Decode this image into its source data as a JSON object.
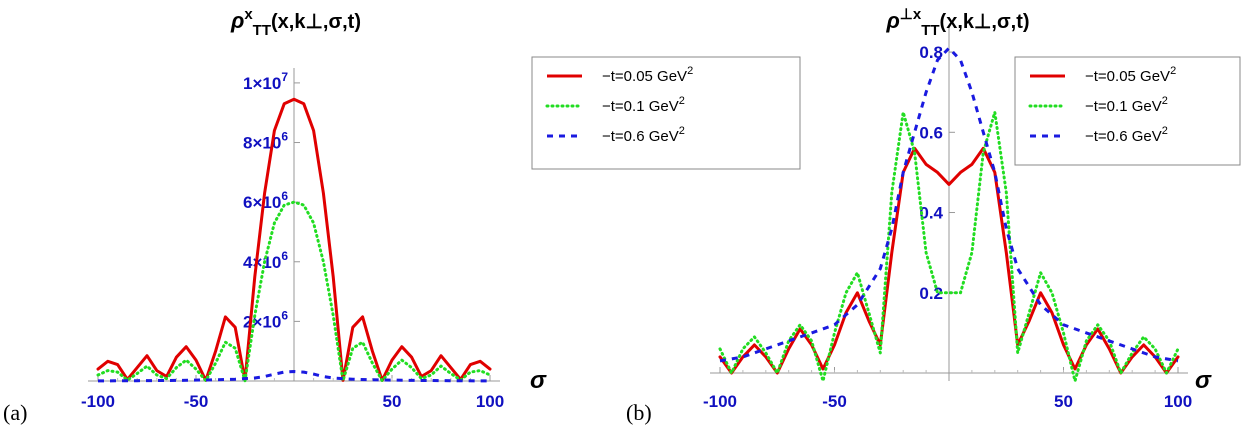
{
  "chart_data": [
    {
      "type": "line",
      "panel_label": "(a)",
      "title": "ρˣ_TT(x,k⊥,σ,t)",
      "title_parts": {
        "base": "ρ",
        "sup": "x",
        "sub": "TT",
        "args": "(x,k⊥,σ,t)"
      },
      "xlabel": "σ",
      "ylabel": "",
      "xlim": [
        -100,
        100
      ],
      "ylim": [
        0,
        10500000
      ],
      "x_ticks": [
        -100,
        -50,
        50,
        100
      ],
      "x_tick_labels": [
        "-100",
        "-50",
        "50",
        "100"
      ],
      "y_ticks": [
        2000000,
        4000000,
        6000000,
        8000000,
        10000000
      ],
      "y_tick_labels": [
        {
          "base": "2×10",
          "exp": "6"
        },
        {
          "base": "4×10",
          "exp": "6"
        },
        {
          "base": "6×10",
          "exp": "6"
        },
        {
          "base": "8×10",
          "exp": "6"
        },
        {
          "base": "1×10",
          "exp": "7"
        }
      ],
      "legend_position": "top-right",
      "series": [
        {
          "name": "−t=0.05 GeV",
          "name_sup": "2",
          "color": "#e00000",
          "dash": "solid",
          "x": [
            -100,
            -95,
            -90,
            -85,
            -80,
            -75,
            -70,
            -65,
            -60,
            -55,
            -50,
            -45,
            -40,
            -35,
            -30,
            -25,
            -20,
            -15,
            -10,
            -5,
            0,
            5,
            10,
            15,
            20,
            25,
            30,
            35,
            40,
            45,
            50,
            55,
            60,
            65,
            70,
            75,
            80,
            85,
            90,
            95,
            100
          ],
          "y": [
            400000,
            660000,
            550000,
            50000,
            450000,
            850000,
            350000,
            150000,
            800000,
            1150000,
            700000,
            20000,
            1000000,
            2150000,
            1800000,
            20000,
            3500000,
            6300000,
            8400000,
            9300000,
            9450000,
            9300000,
            8400000,
            6300000,
            3500000,
            20000,
            1800000,
            2150000,
            1000000,
            20000,
            700000,
            1150000,
            800000,
            150000,
            350000,
            850000,
            450000,
            50000,
            550000,
            660000,
            400000
          ]
        },
        {
          "name": "−t=0.1 GeV",
          "name_sup": "2",
          "color": "#22dd22",
          "dash": "dotted",
          "x": [
            -100,
            -95,
            -90,
            -85,
            -80,
            -75,
            -70,
            -65,
            -60,
            -55,
            -50,
            -45,
            -40,
            -35,
            -30,
            -25,
            -20,
            -15,
            -10,
            -5,
            0,
            5,
            10,
            15,
            20,
            25,
            30,
            35,
            40,
            45,
            50,
            55,
            60,
            65,
            70,
            75,
            80,
            85,
            90,
            95,
            100
          ],
          "y": [
            200000,
            350000,
            300000,
            30000,
            250000,
            500000,
            200000,
            80000,
            450000,
            700000,
            400000,
            10000,
            600000,
            1300000,
            1100000,
            10000,
            2200000,
            4000000,
            5300000,
            5900000,
            6000000,
            5900000,
            5300000,
            4000000,
            2200000,
            10000,
            1100000,
            1300000,
            600000,
            10000,
            400000,
            700000,
            450000,
            80000,
            200000,
            500000,
            250000,
            30000,
            300000,
            350000,
            200000
          ]
        },
        {
          "name": "−t=0.6 GeV",
          "name_sup": "2",
          "color": "#1a1ae0",
          "dash": "dashed",
          "x": [
            -100,
            -80,
            -60,
            -40,
            -30,
            -20,
            -15,
            -10,
            -5,
            0,
            5,
            10,
            15,
            20,
            30,
            40,
            60,
            80,
            100
          ],
          "y": [
            5000,
            10000,
            20000,
            40000,
            60000,
            100000,
            150000,
            230000,
            300000,
            320000,
            300000,
            230000,
            150000,
            100000,
            60000,
            40000,
            20000,
            10000,
            5000
          ]
        }
      ]
    },
    {
      "type": "line",
      "panel_label": "(b)",
      "title": "ρ⊥x_TT(x,k⊥,σ,t)",
      "title_parts": {
        "base": "ρ",
        "sup": "⊥x",
        "sub": "TT",
        "args": "(x,k⊥,σ,t)"
      },
      "xlabel": "σ",
      "ylabel": "",
      "xlim": [
        -100,
        100
      ],
      "ylim": [
        -0.02,
        0.86
      ],
      "x_ticks": [
        -100,
        -50,
        50,
        100
      ],
      "x_tick_labels": [
        "-100",
        "-50",
        "50",
        "100"
      ],
      "y_ticks": [
        0.2,
        0.4,
        0.6,
        0.8
      ],
      "y_tick_labels": [
        "0.2",
        "0.4",
        "0.6",
        "0.8"
      ],
      "legend_position": "top-right",
      "series": [
        {
          "name": "−t=0.05 GeV",
          "name_sup": "2",
          "color": "#e00000",
          "dash": "solid",
          "x": [
            -100,
            -95,
            -90,
            -85,
            -80,
            -75,
            -70,
            -65,
            -60,
            -55,
            -50,
            -45,
            -40,
            -35,
            -30,
            -25,
            -20,
            -15,
            -10,
            -5,
            0,
            5,
            10,
            15,
            20,
            25,
            30,
            35,
            40,
            45,
            50,
            55,
            60,
            65,
            70,
            75,
            80,
            85,
            90,
            95,
            100
          ],
          "y": [
            0.04,
            0.0,
            0.04,
            0.07,
            0.04,
            0.0,
            0.06,
            0.11,
            0.07,
            0.01,
            0.07,
            0.15,
            0.2,
            0.13,
            0.07,
            0.3,
            0.5,
            0.56,
            0.52,
            0.5,
            0.47,
            0.5,
            0.52,
            0.56,
            0.5,
            0.3,
            0.07,
            0.13,
            0.2,
            0.15,
            0.07,
            0.01,
            0.07,
            0.11,
            0.06,
            0.0,
            0.04,
            0.07,
            0.04,
            0.0,
            0.04
          ]
        },
        {
          "name": "−t=0.1 GeV",
          "name_sup": "2",
          "color": "#22dd22",
          "dash": "dotted",
          "x": [
            -100,
            -95,
            -90,
            -85,
            -80,
            -75,
            -70,
            -65,
            -60,
            -55,
            -50,
            -45,
            -40,
            -35,
            -30,
            -25,
            -20,
            -15,
            -10,
            -5,
            0,
            5,
            10,
            15,
            20,
            25,
            30,
            35,
            40,
            45,
            50,
            55,
            60,
            65,
            70,
            75,
            80,
            85,
            90,
            95,
            100
          ],
          "y": [
            0.06,
            0.0,
            0.06,
            0.09,
            0.05,
            0.0,
            0.08,
            0.12,
            0.08,
            -0.02,
            0.1,
            0.2,
            0.25,
            0.15,
            0.05,
            0.45,
            0.65,
            0.55,
            0.3,
            0.2,
            0.2,
            0.2,
            0.3,
            0.55,
            0.65,
            0.45,
            0.05,
            0.15,
            0.25,
            0.2,
            0.1,
            -0.02,
            0.08,
            0.12,
            0.08,
            0.0,
            0.05,
            0.09,
            0.06,
            0.0,
            0.06
          ]
        },
        {
          "name": "−t=0.6 GeV",
          "name_sup": "2",
          "color": "#1a1ae0",
          "dash": "dashed",
          "x": [
            -100,
            -90,
            -80,
            -70,
            -60,
            -50,
            -40,
            -30,
            -25,
            -20,
            -15,
            -10,
            -5,
            0,
            5,
            10,
            15,
            20,
            25,
            30,
            40,
            50,
            60,
            70,
            80,
            90,
            100
          ],
          "y": [
            0.03,
            0.04,
            0.06,
            0.08,
            0.1,
            0.12,
            0.17,
            0.26,
            0.36,
            0.5,
            0.6,
            0.7,
            0.78,
            0.81,
            0.78,
            0.7,
            0.6,
            0.5,
            0.36,
            0.26,
            0.17,
            0.12,
            0.1,
            0.08,
            0.06,
            0.04,
            0.03
          ]
        }
      ]
    }
  ]
}
